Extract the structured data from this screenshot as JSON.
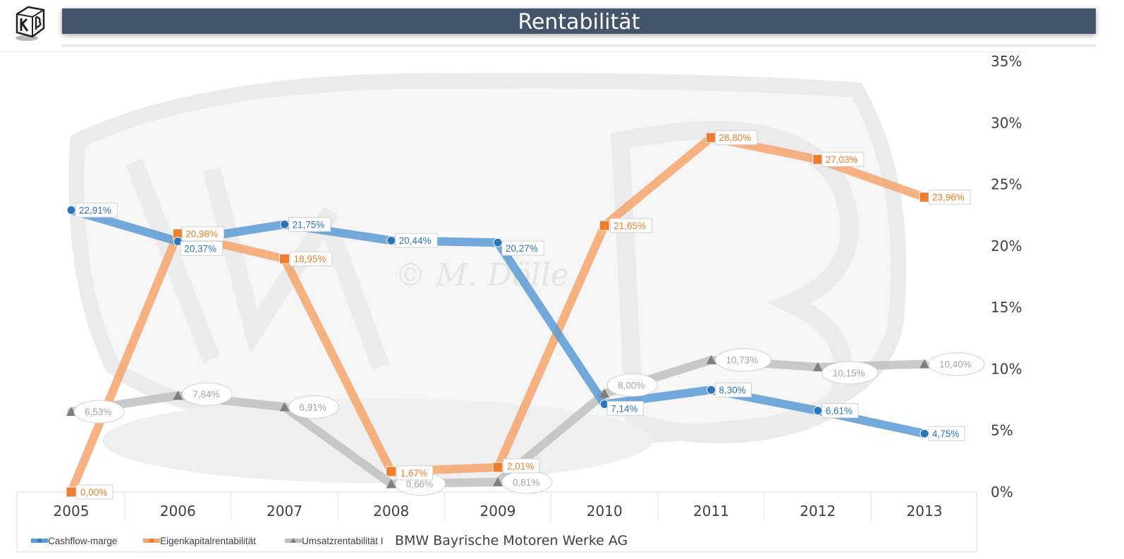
{
  "page": {
    "title": "Rentabilität",
    "company": "BMW Bayrische Motoren Werke AG"
  },
  "chart_data": {
    "type": "line",
    "title": "Rentabilität",
    "categories": [
      "2005",
      "2006",
      "2007",
      "2008",
      "2009",
      "2010",
      "2011",
      "2012",
      "2013"
    ],
    "ylim": [
      0,
      0.35
    ],
    "y_ticks": [
      "0%",
      "5%",
      "10%",
      "15%",
      "20%",
      "25%",
      "30%",
      "35%"
    ],
    "y_axis_side": "right",
    "grid": false,
    "legend_position": "bottom-left",
    "watermark": "© M. Dölle",
    "series": [
      {
        "name": "Cashflow-marge",
        "color": "#5b9bd5",
        "label_color": "#2e75b6",
        "marker": "circle",
        "values": [
          0.2291,
          0.2037,
          0.2175,
          0.2044,
          0.2027,
          0.0714,
          0.083,
          0.0661,
          0.0475
        ],
        "labels": [
          "22,91%",
          "20,37%",
          "21,75%",
          "20,44%",
          "20,27%",
          "7,14%",
          "8,30%",
          "6,61%",
          "4,75%"
        ]
      },
      {
        "name": "Eigenkapitalrentabilität",
        "color": "#f4a46d",
        "label_color": "#ed7d31",
        "marker": "square",
        "values": [
          0.0,
          0.2098,
          0.1895,
          0.0167,
          0.0201,
          0.2165,
          0.288,
          0.2703,
          0.2396
        ],
        "labels": [
          "0,00%",
          "20,98%",
          "18,95%",
          "1,67%",
          "2,01%",
          "21,65%",
          "28,80%",
          "27,03%",
          "23,96%"
        ]
      },
      {
        "name": "Umsatzrentabilität I",
        "color": "#bfbfbf",
        "label_color": "#a5a5a5",
        "marker": "triangle",
        "values": [
          0.0653,
          0.0784,
          0.0691,
          0.0066,
          0.0081,
          0.08,
          0.1073,
          0.1015,
          0.104
        ],
        "labels": [
          "6,53%",
          "7,84%",
          "6,91%",
          "0,66%",
          "0,81%",
          "8,00%",
          "10,73%",
          "10,15%",
          "10,40%"
        ]
      }
    ]
  }
}
